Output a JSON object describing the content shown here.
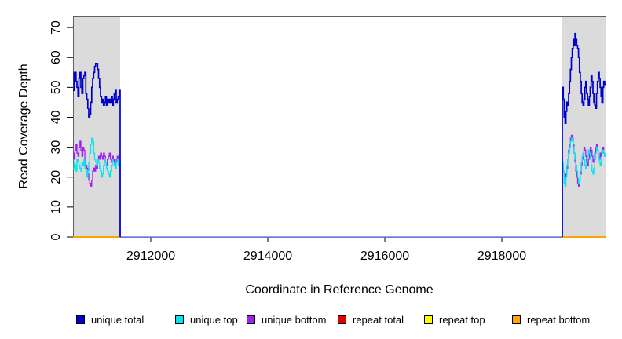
{
  "colors": {
    "unique_total": "#0000CD",
    "unique_top": "#00E5EE",
    "unique_bottom": "#A020F0",
    "repeat_total": "#E00000",
    "repeat_top": "#FFFF00",
    "repeat_bottom": "#FFA500",
    "region_shade": "#DBDBDB",
    "middle_zero": "#7B7BF7",
    "box_border": "#606060"
  },
  "legend": [
    {
      "label": "unique total",
      "color": "#0000CD"
    },
    {
      "label": "unique top",
      "color": "#00E5EE"
    },
    {
      "label": "unique bottom",
      "color": "#A020F0"
    },
    {
      "label": "repeat total",
      "color": "#E00000"
    },
    {
      "label": "repeat top",
      "color": "#FFFF00"
    },
    {
      "label": "repeat bottom",
      "color": "#FFA500"
    }
  ],
  "chart_data": {
    "type": "line",
    "title": "",
    "xlabel": "Coordinate in Reference Genome",
    "ylabel": "Read Coverage Depth",
    "xlim": [
      2910671,
      2919772
    ],
    "ylim": [
      0,
      73.7
    ],
    "x_tick_values": [
      2912000,
      2914000,
      2916000,
      2918000
    ],
    "x_tick_labels": [
      "2912000",
      "2914000",
      "2916000",
      "2918000"
    ],
    "y_tick_values": [
      0,
      10,
      20,
      30,
      40,
      50,
      60,
      70
    ],
    "y_tick_labels": [
      "0",
      "10",
      "20",
      "30",
      "40",
      "50",
      "60",
      "70"
    ],
    "grid": false,
    "legend_position": "bottom",
    "highlight_regions": [
      {
        "start": 2910671,
        "end": 2911477
      },
      {
        "start": 2919034,
        "end": 2919772
      }
    ],
    "series": [
      {
        "name": "unique total",
        "key": "unique_total",
        "color": "#0000CD",
        "width": 1.7,
        "regions": [
          {
            "x_start": 2910671,
            "x_end": 2911477,
            "edge": "end",
            "values": [
              49,
              55,
              55,
              52,
              50,
              47,
              53,
              55,
              50,
              48,
              53,
              54,
              55,
              48,
              46,
              43,
              40,
              41,
              45,
              50,
              53,
              55,
              57,
              58,
              58,
              56,
              53,
              50,
              47,
              45,
              46,
              44,
              45,
              47,
              44,
              46,
              45,
              46,
              45,
              47,
              44,
              46,
              48,
              49,
              45,
              46,
              47,
              49
            ]
          },
          {
            "x_start": 2919034,
            "x_end": 2919772,
            "edge": "start",
            "values": [
              50,
              46,
              40,
              38,
              42,
              45,
              44,
              48,
              52,
              56,
              60,
              63,
              66,
              64,
              68,
              66,
              64,
              63,
              60,
              55,
              52,
              48,
              45,
              44,
              46,
              50,
              52,
              48,
              46,
              44,
              47,
              50,
              54,
              52,
              48,
              45,
              44,
              43,
              48,
              52,
              55,
              53,
              50,
              47,
              45,
              50,
              52,
              51
            ]
          }
        ],
        "between_regions_value": 0
      },
      {
        "name": "unique top",
        "key": "unique_top",
        "color": "#00E5EE",
        "width": 1.3,
        "regions": [
          {
            "x_start": 2910671,
            "x_end": 2911477,
            "edge": "end",
            "values": [
              23,
              25,
              24,
              22,
              26,
              25,
              24,
              23,
              22,
              25,
              24,
              26,
              23,
              22,
              20,
              22,
              25,
              28,
              31,
              33,
              32,
              28,
              26,
              25,
              24,
              26,
              25,
              23,
              22,
              20,
              21,
              24,
              26,
              25,
              23,
              22,
              21,
              20,
              22,
              24,
              26,
              25,
              24,
              23,
              25,
              26,
              24,
              23
            ]
          },
          {
            "x_start": 2919034,
            "x_end": 2919772,
            "edge": "start",
            "values": [
              25,
              22,
              18,
              17,
              20,
              24,
              26,
              28,
              30,
              32,
              33,
              32,
              30,
              28,
              26,
              24,
              22,
              20,
              18,
              19,
              22,
              25,
              27,
              28,
              26,
              24,
              23,
              25,
              27,
              29,
              28,
              26,
              24,
              22,
              21,
              23,
              26,
              28,
              30,
              29,
              27,
              25,
              24,
              26,
              28,
              29,
              28,
              27
            ]
          }
        ],
        "between_regions_value": 0
      },
      {
        "name": "unique bottom",
        "key": "unique_bottom",
        "color": "#A020F0",
        "width": 1.3,
        "regions": [
          {
            "x_start": 2910671,
            "x_end": 2911477,
            "edge": "end",
            "values": [
              28,
              26,
              29,
              31,
              28,
              27,
              30,
              32,
              29,
              27,
              30,
              29,
              26,
              24,
              23,
              21,
              19,
              18,
              17,
              19,
              22,
              23,
              22,
              24,
              23,
              25,
              27,
              26,
              28,
              27,
              26,
              28,
              27,
              25,
              24,
              26,
              27,
              28,
              26,
              25,
              27,
              26,
              24,
              25,
              26,
              27,
              25,
              24
            ]
          },
          {
            "x_start": 2919034,
            "x_end": 2919772,
            "edge": "start",
            "values": [
              24,
              22,
              20,
              19,
              21,
              23,
              26,
              29,
              31,
              33,
              34,
              33,
              31,
              28,
              25,
              22,
              20,
              18,
              17,
              19,
              21,
              24,
              26,
              28,
              30,
              29,
              27,
              25,
              24,
              26,
              28,
              30,
              29,
              27,
              25,
              26,
              28,
              30,
              31,
              29,
              27,
              26,
              28,
              27,
              29,
              30,
              28,
              27
            ]
          }
        ],
        "between_regions_value": 0
      },
      {
        "name": "repeat total",
        "key": "repeat_total",
        "color": "#E00000",
        "width": 1.5,
        "constant": 0,
        "regions_only": true
      },
      {
        "name": "repeat top",
        "key": "repeat_top",
        "color": "#FFFF00",
        "width": 1.5,
        "constant": 0,
        "regions_only": true
      },
      {
        "name": "repeat bottom",
        "key": "repeat_bottom",
        "color": "#FFA500",
        "width": 1.8,
        "constant": 0,
        "regions_only": true
      }
    ]
  }
}
